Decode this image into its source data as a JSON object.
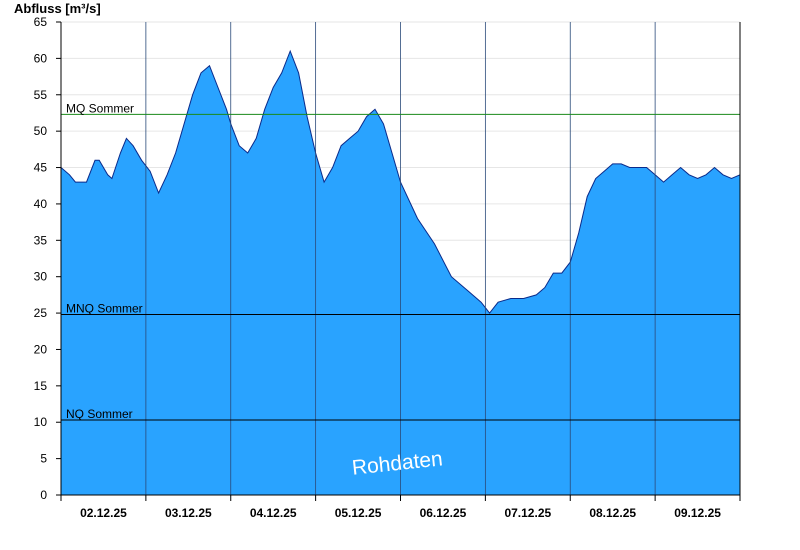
{
  "chart_data": {
    "type": "area",
    "ylabel": "Abfluss [m³/s]",
    "ylim": [
      0,
      65
    ],
    "yticks": [
      0,
      5,
      10,
      15,
      20,
      25,
      30,
      35,
      40,
      45,
      50,
      55,
      60,
      65
    ],
    "xlim_days": [
      0,
      8
    ],
    "x_tick_labels": [
      "02.12.25",
      "03.12.25",
      "04.12.25",
      "05.12.25",
      "06.12.25",
      "07.12.25",
      "08.12.25",
      "09.12.25"
    ],
    "grid": true,
    "series": [
      {
        "color": "#29a3ff",
        "x_days": [
          0.0,
          0.1,
          0.17,
          0.3,
          0.4,
          0.45,
          0.55,
          0.6,
          0.7,
          0.77,
          0.85,
          0.95,
          1.05,
          1.15,
          1.25,
          1.35,
          1.45,
          1.55,
          1.65,
          1.75,
          1.85,
          1.95,
          2.0,
          2.1,
          2.2,
          2.3,
          2.4,
          2.5,
          2.6,
          2.7,
          2.8,
          2.9,
          3.0,
          3.1,
          3.2,
          3.3,
          3.4,
          3.5,
          3.6,
          3.7,
          3.8,
          3.9,
          4.0,
          4.2,
          4.4,
          4.6,
          4.8,
          4.95,
          5.05,
          5.15,
          5.3,
          5.45,
          5.6,
          5.7,
          5.8,
          5.9,
          6.0,
          6.1,
          6.2,
          6.3,
          6.4,
          6.5,
          6.6,
          6.7,
          6.8,
          6.9,
          7.0,
          7.1,
          7.2,
          7.3,
          7.4,
          7.5,
          7.6,
          7.7,
          7.8,
          7.9,
          8.0
        ],
        "values": [
          45,
          44,
          43,
          43,
          46,
          46,
          44,
          43.5,
          47,
          49,
          48,
          46,
          44.5,
          41.5,
          44,
          47,
          51,
          55,
          58,
          59,
          56,
          53,
          51,
          48,
          47,
          49,
          53,
          56,
          58,
          61,
          58,
          52,
          47,
          43,
          45,
          48,
          49,
          50,
          52,
          53,
          51,
          47,
          43,
          38,
          34.5,
          30,
          28,
          26.5,
          25,
          26.5,
          27,
          27,
          27.5,
          28.5,
          30.5,
          30.5,
          32,
          36,
          41,
          43.5,
          44.5,
          45.5,
          45.5,
          45,
          45,
          45,
          44,
          43,
          44,
          45,
          44,
          43.5,
          44,
          45,
          44,
          43.5,
          44
        ]
      }
    ],
    "reference_lines": [
      {
        "label": "MQ Sommer",
        "value": 52.3,
        "color": "#1a8a1a"
      },
      {
        "label": "MNQ Sommer",
        "value": 24.8,
        "color": "#000000"
      },
      {
        "label": "NQ Sommer",
        "value": 10.3,
        "color": "#000000"
      }
    ],
    "watermark": "Rohdaten"
  }
}
